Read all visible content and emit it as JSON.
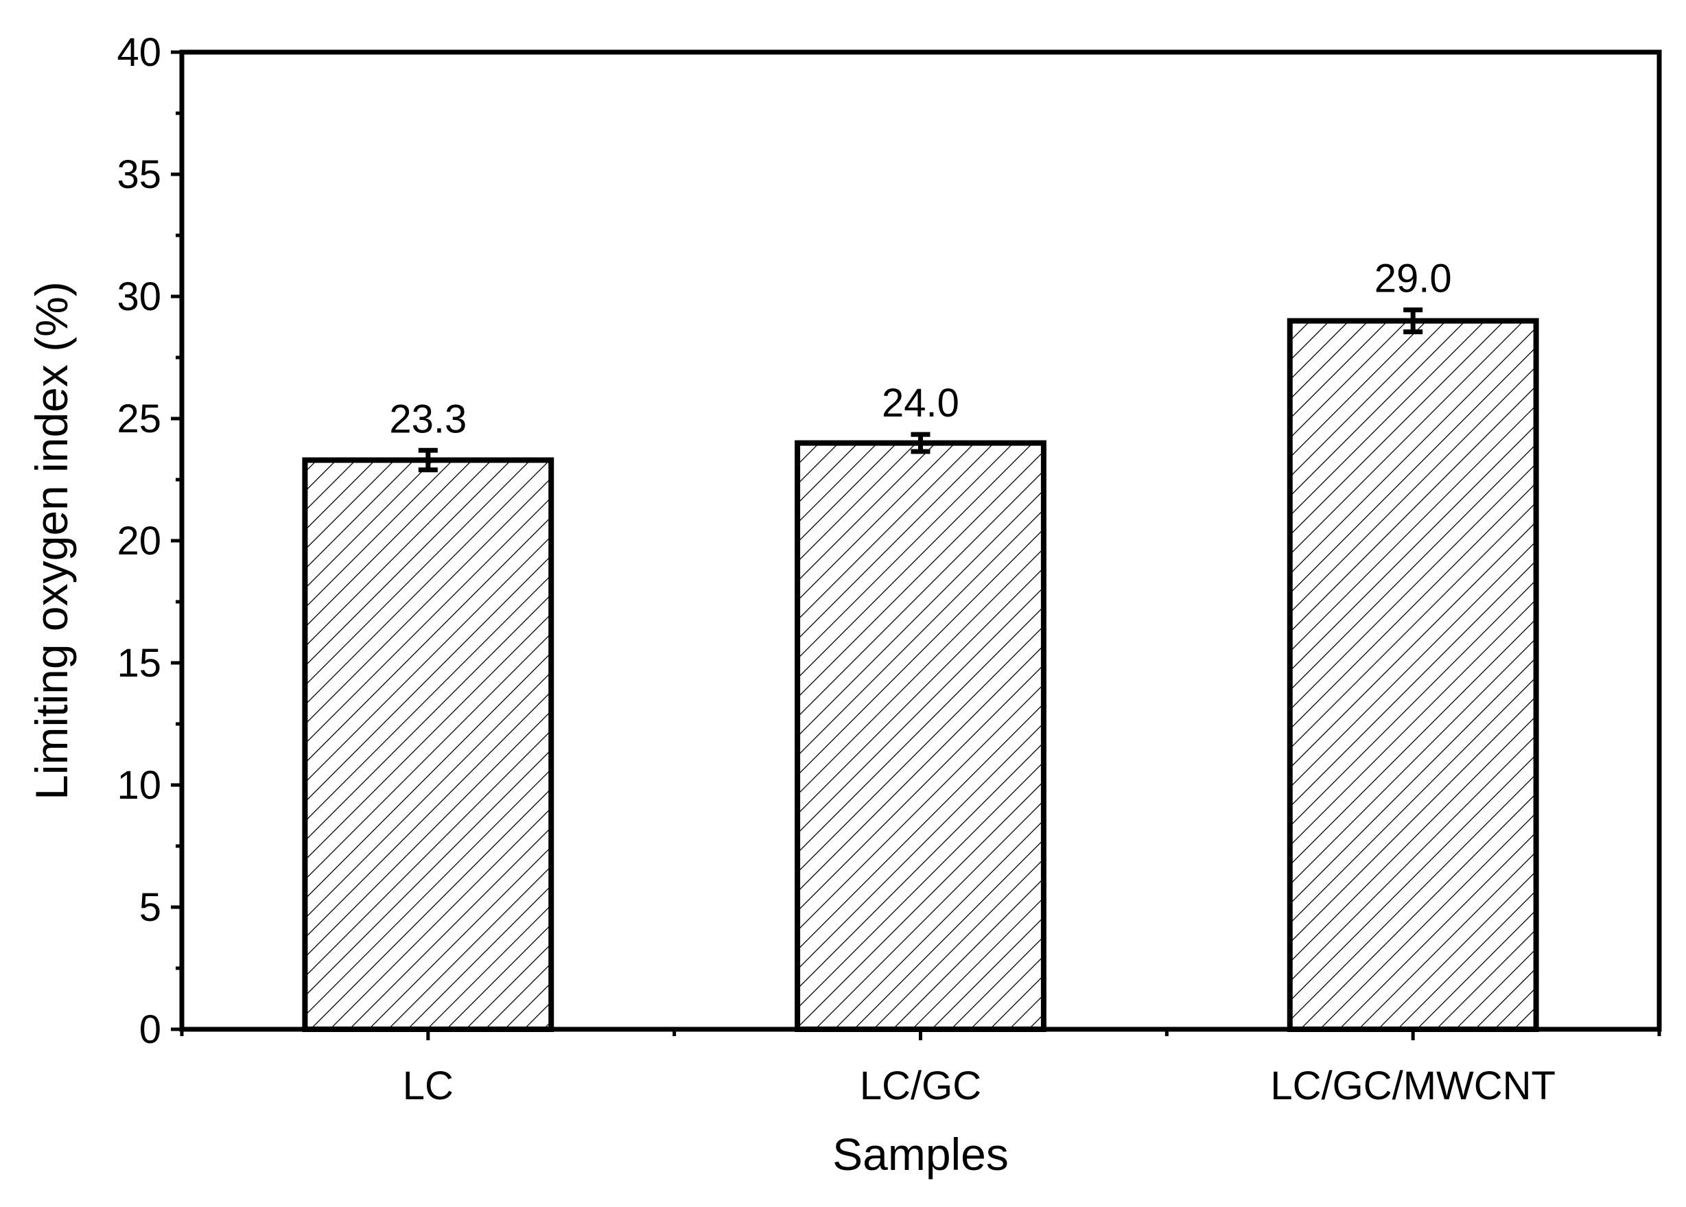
{
  "chart_data": {
    "type": "bar",
    "categories": [
      "LC",
      "LC/GC",
      "LC/GC/MWCNT"
    ],
    "values": [
      23.3,
      24.0,
      29.0
    ],
    "error": [
      0.4,
      0.35,
      0.45
    ],
    "data_labels": [
      "23.3",
      "24.0",
      "29.0"
    ],
    "xlabel": "Samples",
    "ylabel": "Limiting oxygen index (%)",
    "ylim": [
      0,
      40
    ],
    "yticks": [
      0,
      5,
      10,
      15,
      20,
      25,
      30,
      35,
      40
    ],
    "ytick_labels": [
      "0",
      "5",
      "10",
      "15",
      "20",
      "25",
      "30",
      "35",
      "40"
    ],
    "bar_fill": "hatched",
    "grid": false,
    "legend": "none",
    "colors": {
      "bar_edge": "#000000",
      "hatch": "#000000",
      "bar_background": "#ffffff"
    }
  }
}
